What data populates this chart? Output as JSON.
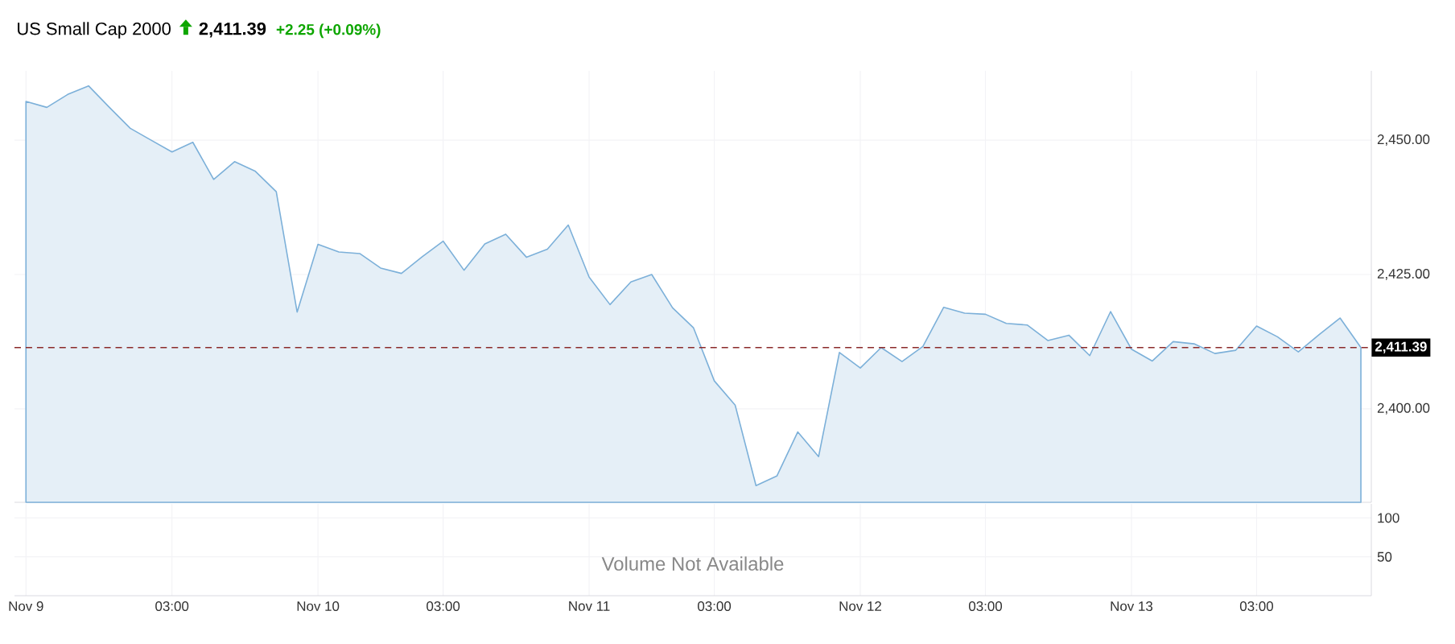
{
  "chart_data": [
    {
      "type": "area",
      "title": "US Small Cap 2000",
      "annotations": [
        "2,411.39",
        "+2.25 (+0.09%)"
      ],
      "categories": [
        null,
        null,
        null,
        null,
        null,
        null,
        null,
        null,
        null,
        null,
        null,
        null,
        null,
        null,
        null,
        null,
        null,
        null,
        null,
        null,
        null,
        null,
        null,
        null,
        null,
        null,
        null,
        null,
        null,
        null,
        null,
        null,
        null,
        null,
        null,
        null,
        null,
        null,
        null,
        null,
        null,
        null,
        null,
        null,
        null,
        null,
        null,
        null,
        null,
        null,
        null,
        null,
        null,
        null,
        null,
        null,
        null,
        null,
        null,
        null,
        null,
        null,
        null,
        null,
        null
      ],
      "values": [
        2457.2,
        2456.1,
        2458.5,
        2460.1,
        2456.1,
        2452.2,
        2450.0,
        2447.8,
        2449.6,
        2442.7,
        2446.0,
        2444.2,
        2440.4,
        2418.0,
        2430.6,
        2429.2,
        2428.9,
        2426.2,
        2425.2,
        2428.3,
        2431.2,
        2425.8,
        2430.7,
        2432.5,
        2428.2,
        2429.7,
        2434.2,
        2424.5,
        2419.4,
        2423.6,
        2425.0,
        2418.8,
        2415.1,
        2405.2,
        2400.7,
        2385.7,
        2387.5,
        2395.7,
        2391.1,
        2410.5,
        2407.6,
        2411.4,
        2408.8,
        2411.6,
        2418.9,
        2417.8,
        2417.6,
        2415.9,
        2415.6,
        2412.7,
        2413.7,
        2409.9,
        2418.1,
        2411.1,
        2408.9,
        2412.5,
        2412.1,
        2410.3,
        2410.9,
        2415.4,
        2413.4,
        2410.6,
        2413.8,
        2416.9,
        2411.4
      ],
      "color": "#7cb0d9",
      "ylim": [
        2382.6,
        2462.9
      ],
      "yticks": [
        {
          "value": 2400,
          "label": "2,400.00"
        },
        {
          "value": 2425,
          "label": "2,425.00"
        },
        {
          "value": 2450,
          "label": "2,450.00"
        }
      ],
      "grid": true,
      "tick_labels": "y",
      "ref_lines": [
        {
          "axis": "y",
          "value": 2411.39,
          "label": "2,411.39",
          "color": "#8b2a2a",
          "line_style": "dashed"
        }
      ]
    },
    {
      "type": "bar",
      "annotations": [
        "Volume Not Available"
      ],
      "categories": [
        "Nov 9",
        null,
        null,
        null,
        null,
        null,
        null,
        "03:00",
        null,
        null,
        null,
        null,
        null,
        null,
        "Nov 10",
        null,
        null,
        null,
        null,
        null,
        "03:00",
        null,
        null,
        null,
        null,
        null,
        null,
        "Nov 11",
        null,
        null,
        null,
        null,
        null,
        "03:00",
        null,
        null,
        null,
        null,
        null,
        null,
        "Nov 12",
        null,
        null,
        null,
        null,
        null,
        "03:00",
        null,
        null,
        null,
        null,
        null,
        null,
        "Nov 13",
        null,
        null,
        null,
        null,
        null,
        "03:00",
        null,
        null,
        null,
        null,
        null
      ],
      "values": [
        null,
        null,
        null,
        null,
        null,
        null,
        null,
        null,
        null,
        null,
        null,
        null,
        null,
        null,
        null,
        null,
        null,
        null,
        null,
        null,
        null,
        null,
        null,
        null,
        null,
        null,
        null,
        null,
        null,
        null,
        null,
        null,
        null,
        null,
        null,
        null,
        null,
        null,
        null,
        null,
        null,
        null,
        null,
        null,
        null,
        null,
        null,
        null,
        null,
        null,
        null,
        null,
        null,
        null,
        null,
        null,
        null,
        null,
        null,
        null,
        null,
        null,
        null,
        null,
        null
      ],
      "color": "#7cb0d9",
      "ylim": [
        0,
        118
      ],
      "yticks": [
        50,
        100
      ],
      "grid": true
    }
  ]
}
